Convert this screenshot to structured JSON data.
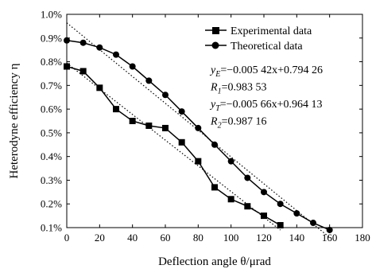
{
  "chart_data": {
    "type": "line",
    "xlabel": "Deflection angle θ/μrad",
    "ylabel": "Heterodyne efficiency η",
    "xlim": [
      0,
      180
    ],
    "ylim": [
      0.1,
      1.0
    ],
    "x_ticks": [
      "0",
      "20",
      "40",
      "60",
      "80",
      "100",
      "120",
      "140",
      "160",
      "180"
    ],
    "y_ticks": [
      "0.1%",
      "0.2%",
      "0.3%",
      "0.4%",
      "0.5%",
      "0.6%",
      "0.7%",
      "0.8%",
      "0.9%",
      "1.0%"
    ],
    "grid": false,
    "legend_position": "top-right",
    "series": [
      {
        "name": "Experimental data",
        "marker": "square",
        "color": "#000000",
        "x": [
          0,
          10,
          20,
          30,
          40,
          50,
          60,
          70,
          80,
          90,
          100,
          110,
          120,
          130
        ],
        "y": [
          0.78,
          0.76,
          0.69,
          0.6,
          0.55,
          0.53,
          0.52,
          0.46,
          0.38,
          0.27,
          0.22,
          0.19,
          0.15,
          0.11
        ]
      },
      {
        "name": "Theoretical data",
        "marker": "circle",
        "color": "#000000",
        "x": [
          0,
          10,
          20,
          30,
          40,
          50,
          60,
          70,
          80,
          90,
          100,
          110,
          120,
          130,
          140,
          150,
          160
        ],
        "y": [
          0.89,
          0.88,
          0.86,
          0.83,
          0.78,
          0.72,
          0.66,
          0.59,
          0.52,
          0.45,
          0.38,
          0.31,
          0.25,
          0.2,
          0.16,
          0.12,
          0.09
        ]
      }
    ],
    "fits": [
      {
        "slope": -0.00542,
        "intercept": 0.79426,
        "x_range": [
          0,
          130
        ],
        "style": "dotted"
      },
      {
        "slope": -0.00566,
        "intercept": 0.964131,
        "x_range": [
          0,
          160
        ],
        "style": "dotted"
      }
    ],
    "annotations": [
      {
        "lhs": "y",
        "sub": "E",
        "rhs": "=−0.005 42x+0.794 26"
      },
      {
        "lhs": "R",
        "sub": "1",
        "rhs": "=0.983 53"
      },
      {
        "lhs": "y",
        "sub": "T",
        "rhs": "=−0.005 66x+0.964 13"
      },
      {
        "lhs": "R",
        "sub": "2",
        "rhs": "=0.987 16"
      }
    ]
  }
}
